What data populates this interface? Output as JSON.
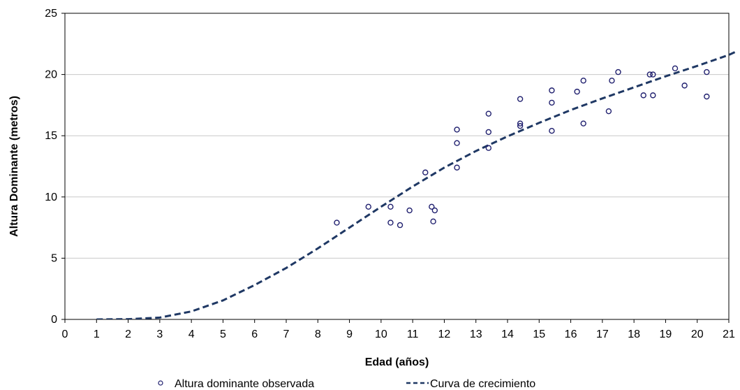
{
  "chart_data": {
    "type": "scatter",
    "title": "",
    "xlabel": "Edad (años)",
    "ylabel": "Altura Dominante (metros)",
    "xlim": [
      0,
      21
    ],
    "ylim": [
      0,
      25
    ],
    "xticks": [
      "0",
      "1",
      "2",
      "3",
      "4",
      "5",
      "6",
      "7",
      "8",
      "9",
      "10",
      "11",
      "12",
      "13",
      "14",
      "15",
      "16",
      "17",
      "18",
      "19",
      "20",
      "21"
    ],
    "yticks": [
      "0",
      "5",
      "10",
      "15",
      "20",
      "25"
    ],
    "grid": "horizontal",
    "legend_position": "bottom",
    "series": [
      {
        "name": "Altura dominante observada",
        "kind": "scatter",
        "marker": "open-circle",
        "color": "#1f1f6e",
        "points": [
          [
            8.6,
            7.9
          ],
          [
            9.6,
            9.2
          ],
          [
            10.3,
            9.2
          ],
          [
            10.3,
            7.9
          ],
          [
            10.6,
            7.7
          ],
          [
            10.9,
            8.9
          ],
          [
            11.4,
            12.0
          ],
          [
            11.6,
            9.2
          ],
          [
            11.65,
            8.0
          ],
          [
            11.7,
            8.9
          ],
          [
            12.4,
            15.5
          ],
          [
            12.4,
            14.4
          ],
          [
            12.4,
            12.4
          ],
          [
            13.4,
            16.8
          ],
          [
            13.4,
            15.3
          ],
          [
            13.4,
            14.0
          ],
          [
            14.4,
            18.0
          ],
          [
            14.4,
            16.0
          ],
          [
            14.4,
            15.8
          ],
          [
            15.4,
            18.7
          ],
          [
            15.4,
            17.7
          ],
          [
            15.4,
            15.4
          ],
          [
            16.2,
            18.6
          ],
          [
            16.4,
            19.5
          ],
          [
            16.4,
            16.0
          ],
          [
            17.2,
            17.0
          ],
          [
            17.3,
            19.5
          ],
          [
            17.5,
            20.2
          ],
          [
            18.3,
            18.3
          ],
          [
            18.5,
            20.0
          ],
          [
            18.6,
            20.0
          ],
          [
            18.6,
            18.3
          ],
          [
            19.3,
            20.5
          ],
          [
            19.6,
            19.1
          ],
          [
            20.3,
            20.2
          ],
          [
            20.3,
            18.2
          ]
        ]
      },
      {
        "name": "Curva de crecimiento",
        "kind": "line",
        "style": "dashed",
        "color": "#1f3864",
        "points": [
          [
            1,
            0.0
          ],
          [
            2,
            0.02
          ],
          [
            3,
            0.15
          ],
          [
            4,
            0.65
          ],
          [
            5,
            1.55
          ],
          [
            6,
            2.8
          ],
          [
            7,
            4.2
          ],
          [
            8,
            5.8
          ],
          [
            9,
            7.5
          ],
          [
            10,
            9.2
          ],
          [
            11,
            10.85
          ],
          [
            12,
            12.4
          ],
          [
            13,
            13.75
          ],
          [
            14,
            14.95
          ],
          [
            15,
            16.05
          ],
          [
            16,
            17.1
          ],
          [
            17,
            18.05
          ],
          [
            18,
            18.95
          ],
          [
            19,
            19.85
          ],
          [
            20,
            20.7
          ],
          [
            21,
            21.6
          ],
          [
            21.5,
            22.2
          ]
        ]
      }
    ]
  }
}
